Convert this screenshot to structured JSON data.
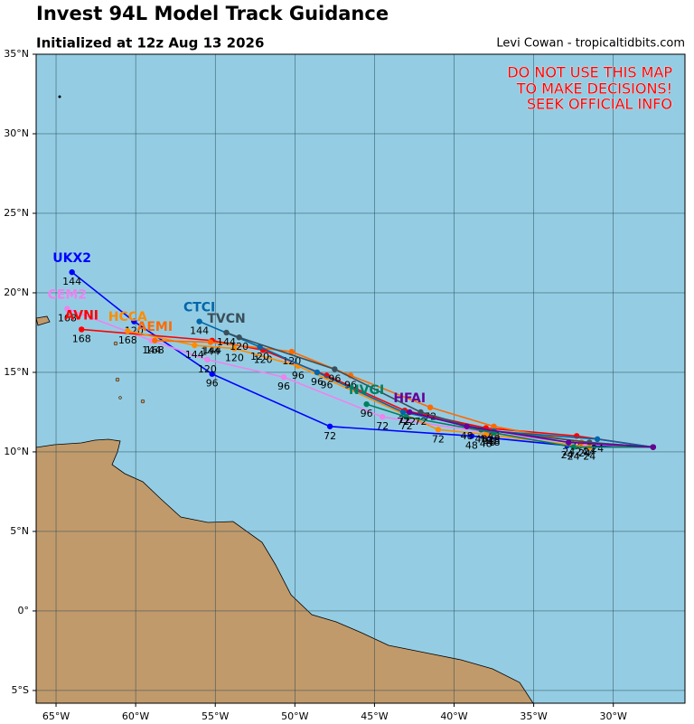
{
  "chart_data": {
    "type": "track-map",
    "title": "Invest 94L Model Track Guidance",
    "subtitle": "Initialized at 12z Aug 13 2026",
    "credit": "Levi Cowan - tropicaltidbits.com",
    "warning": [
      "DO NOT USE THIS MAP",
      "TO MAKE DECISIONS!",
      "SEEK OFFICIAL INFO"
    ],
    "xlim": [
      -66.25,
      -25.5
    ],
    "ylim": [
      -5.8,
      35
    ],
    "grid": true,
    "xticks": [
      {
        "value": -65,
        "label": "65°W"
      },
      {
        "value": -60,
        "label": "60°W"
      },
      {
        "value": -55,
        "label": "55°W"
      },
      {
        "value": -50,
        "label": "50°W"
      },
      {
        "value": -45,
        "label": "45°W"
      },
      {
        "value": -40,
        "label": "40°W"
      },
      {
        "value": -35,
        "label": "35°W"
      },
      {
        "value": -30,
        "label": "30°W"
      }
    ],
    "yticks": [
      {
        "value": -5,
        "label": "5°S"
      },
      {
        "value": 0,
        "label": "0°"
      },
      {
        "value": 5,
        "label": "5°N"
      },
      {
        "value": 10,
        "label": "10°N"
      },
      {
        "value": 15,
        "label": "15°N"
      },
      {
        "value": 20,
        "label": "20°N"
      },
      {
        "value": 25,
        "label": "25°N"
      },
      {
        "value": 30,
        "label": "30°N"
      },
      {
        "value": 35,
        "label": "35°N"
      }
    ],
    "series": [
      {
        "name": "UKX2",
        "color": "#0000ff",
        "lon": [
          -27.5,
          -32.9,
          -38.9,
          -47.8,
          -55.2,
          -60.1,
          -64.0
        ],
        "lat": [
          10.3,
          10.4,
          11.0,
          11.6,
          14.9,
          18.2,
          21.3
        ],
        "labels": [
          null,
          "24",
          "48",
          "72",
          "96",
          "120",
          "144"
        ]
      },
      {
        "name": "CEM2",
        "color": "#ee82ee",
        "lon": [
          -27.5,
          -31.8,
          -37.8,
          -44.5,
          -50.7,
          -55.5,
          -59.0,
          -64.3
        ],
        "lat": [
          10.3,
          10.5,
          11.2,
          12.2,
          14.7,
          15.8,
          17.0,
          19.0
        ],
        "labels": [
          null,
          "24",
          "48",
          "72",
          "96",
          "120",
          "144",
          "168"
        ]
      },
      {
        "name": "AVNI",
        "color": "#ff0000",
        "lon": [
          -27.5,
          -32.3,
          -38.0,
          -43.1,
          -48.0,
          -52.0,
          -55.2,
          -63.4
        ],
        "lat": [
          10.3,
          11.0,
          11.5,
          12.6,
          14.8,
          16.4,
          17.0,
          17.7
        ],
        "labels": [
          null,
          "24",
          "48",
          "72",
          "96",
          "120",
          "144",
          "168"
        ]
      },
      {
        "name": "HCCA",
        "color": "#ff8c00",
        "lon": [
          -27.5,
          -31.5,
          -38.0,
          -41.0,
          -49.8,
          -53.8,
          -56.3,
          -60.5
        ],
        "lat": [
          10.3,
          10.3,
          11.1,
          11.4,
          15.4,
          16.5,
          16.7,
          17.6
        ],
        "labels": [
          null,
          "24",
          "48",
          "72",
          "96",
          "120",
          "144",
          "168"
        ]
      },
      {
        "name": "AEMI",
        "color": "#ff6a00",
        "lon": [
          -27.5,
          -32.0,
          -37.5,
          -41.5,
          -46.5,
          -50.2,
          -55.3,
          -58.8
        ],
        "lat": [
          10.3,
          10.6,
          11.6,
          12.8,
          14.8,
          16.3,
          16.9,
          17.0
        ],
        "labels": [
          null,
          "24",
          "48",
          "72",
          "96",
          "120",
          "144",
          "168"
        ]
      },
      {
        "name": "CTCI",
        "color": "#0066aa",
        "lon": [
          -27.5,
          -31.0,
          -37.5,
          -43.2,
          -48.6,
          -52.2,
          -56.0
        ],
        "lat": [
          10.3,
          10.8,
          11.3,
          12.5,
          15.0,
          16.6,
          18.2
        ],
        "labels": [
          null,
          "24",
          "48",
          "72",
          "96",
          "120",
          "144"
        ]
      },
      {
        "name": "TVCN",
        "color": "#3a4f5a",
        "lon": [
          -27.5,
          -31.5,
          -38.3,
          -42.1,
          -47.5,
          -53.5,
          -54.3
        ],
        "lat": [
          10.3,
          10.6,
          11.4,
          12.5,
          15.2,
          17.2,
          17.5
        ],
        "labels": [
          null,
          "24",
          "48",
          "72",
          "96",
          "120",
          "144"
        ]
      },
      {
        "name": "NVGI",
        "color": "#008060",
        "lon": [
          -27.5,
          -32.5,
          -37.5,
          -43.0,
          -45.5
        ],
        "lat": [
          10.3,
          10.3,
          11.2,
          12.2,
          13.0
        ],
        "labels": [
          null,
          "24",
          "48",
          "72",
          "96"
        ]
      },
      {
        "name": "HFAI",
        "color": "#660099",
        "lon": [
          -27.5,
          -32.8,
          -39.2,
          -42.8
        ],
        "lat": [
          10.3,
          10.6,
          11.6,
          12.5
        ],
        "labels": [
          null,
          "24",
          "48",
          "72"
        ]
      }
    ]
  }
}
